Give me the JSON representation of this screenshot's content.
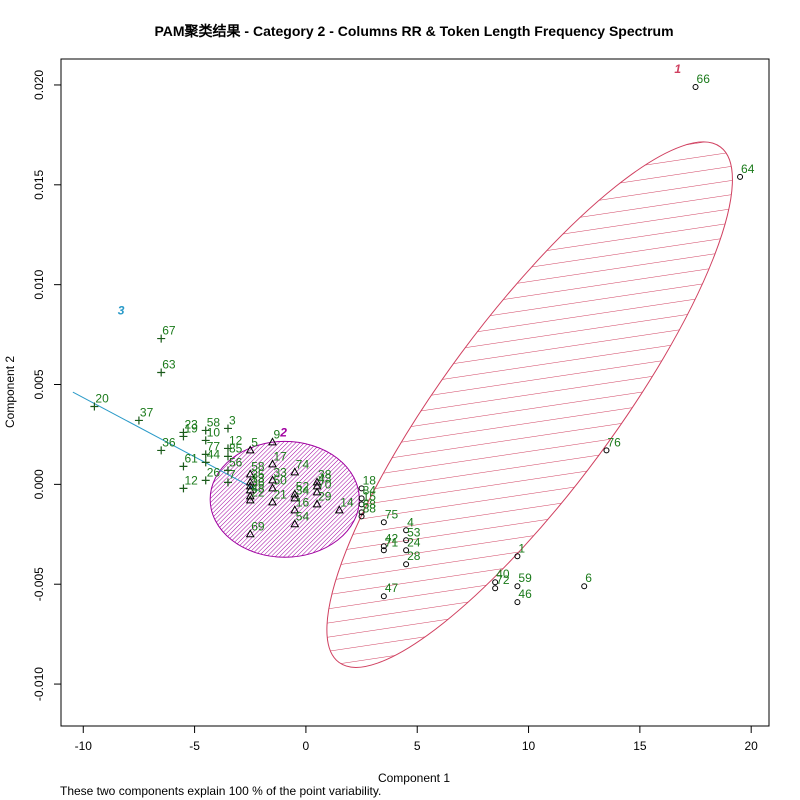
{
  "chart_data": {
    "type": "scatter",
    "title": "PAM聚类结果 - Category  2  - Columns  RR  &  Token Length Frequency Spectrum",
    "xlabel": "Component 1",
    "ylabel": "Component 2",
    "footer": "These two components explain 100 % of the point variability.",
    "xlim": [
      -11,
      20.8
    ],
    "ylim": [
      -0.0121,
      0.0213
    ],
    "xticks": [
      -10,
      -5,
      0,
      5,
      10,
      15,
      20
    ],
    "yticks": [
      -0.01,
      -0.005,
      0.0,
      0.005,
      0.01,
      0.015,
      0.02
    ],
    "ytick_labels": [
      "-0.010",
      "-0.005",
      "0.000",
      "0.005",
      "0.010",
      "0.015",
      "0.020"
    ],
    "colors": {
      "label": "#1a7a1a",
      "cluster1": "#d04060",
      "cluster2": "#a000a0",
      "cluster3": "#2a9ac8",
      "points": "#000000"
    },
    "clusters": [
      {
        "id": "1",
        "marker": "circle",
        "ellipse": {
          "cx": 10.05,
          "cy": 0.00399,
          "a": 14.4,
          "b": 3.85,
          "angle_deg": -53.5
        },
        "label_pos": {
          "x": 16.7,
          "y": 0.0206
        },
        "points": [
          {
            "label": "66",
            "x": 17.5,
            "y": 0.0199
          },
          {
            "label": "64",
            "x": 19.5,
            "y": 0.0154
          },
          {
            "label": "76",
            "x": 13.5,
            "y": 0.0017
          },
          {
            "label": "18",
            "x": 2.5,
            "y": -0.0002
          },
          {
            "label": "84",
            "x": 2.5,
            "y": -0.0007
          },
          {
            "label": "15",
            "x": 2.5,
            "y": -0.001
          },
          {
            "label": "68",
            "x": 2.5,
            "y": -0.0014
          },
          {
            "label": "88",
            "x": 2.5,
            "y": -0.0016
          },
          {
            "label": "75",
            "x": 3.5,
            "y": -0.0019
          },
          {
            "label": "4",
            "x": 4.5,
            "y": -0.0023
          },
          {
            "label": "53",
            "x": 4.5,
            "y": -0.0028
          },
          {
            "label": "42",
            "x": 3.5,
            "y": -0.0031
          },
          {
            "label": "71",
            "x": 3.5,
            "y": -0.0033
          },
          {
            "label": "24",
            "x": 4.5,
            "y": -0.0033
          },
          {
            "label": "28",
            "x": 4.5,
            "y": -0.004
          },
          {
            "label": "1",
            "x": 9.5,
            "y": -0.0036
          },
          {
            "label": "40",
            "x": 8.5,
            "y": -0.0049
          },
          {
            "label": "72",
            "x": 8.5,
            "y": -0.0052
          },
          {
            "label": "59",
            "x": 9.5,
            "y": -0.0051
          },
          {
            "label": "46",
            "x": 9.5,
            "y": -0.0059
          },
          {
            "label": "6",
            "x": 12.5,
            "y": -0.0051
          },
          {
            "label": "47",
            "x": 3.5,
            "y": -0.0056
          }
        ]
      },
      {
        "id": "2",
        "marker": "triangle",
        "ellipse": {
          "cx": -0.95,
          "cy": -0.00075,
          "a": 3.35,
          "b": 0.0029,
          "angle_deg": 0
        },
        "label_pos": {
          "x": -1.0,
          "y": 0.0024
        },
        "points": [
          {
            "label": "9",
            "x": -1.5,
            "y": 0.0021
          },
          {
            "label": "5",
            "x": -2.5,
            "y": 0.0017
          },
          {
            "label": "17",
            "x": -1.5,
            "y": 0.001
          },
          {
            "label": "74",
            "x": -0.5,
            "y": 0.0006
          },
          {
            "label": "58",
            "x": -2.5,
            "y": 0.0005
          },
          {
            "label": "33",
            "x": -1.5,
            "y": 0.0002
          },
          {
            "label": "35",
            "x": -2.5,
            "y": 0.0001
          },
          {
            "label": "13",
            "x": -2.5,
            "y": -0.0001
          },
          {
            "label": "38",
            "x": 0.5,
            "y": 0.0001
          },
          {
            "label": "43",
            "x": 0.5,
            "y": -0.0001
          },
          {
            "label": "50",
            "x": -1.5,
            "y": -0.0002
          },
          {
            "label": "36",
            "x": -2.5,
            "y": -0.0003
          },
          {
            "label": "48",
            "x": -2.5,
            "y": -0.0006
          },
          {
            "label": "52",
            "x": -0.5,
            "y": -0.0005
          },
          {
            "label": "34",
            "x": -0.5,
            "y": -0.0007
          },
          {
            "label": "22",
            "x": -2.5,
            "y": -0.0008
          },
          {
            "label": "70",
            "x": 0.5,
            "y": -0.0004
          },
          {
            "label": "21",
            "x": -1.5,
            "y": -0.0009
          },
          {
            "label": "29",
            "x": 0.5,
            "y": -0.001
          },
          {
            "label": "16",
            "x": -0.5,
            "y": -0.0013
          },
          {
            "label": "14",
            "x": 1.5,
            "y": -0.0013
          },
          {
            "label": "54",
            "x": -0.5,
            "y": -0.002
          },
          {
            "label": "69",
            "x": -2.5,
            "y": -0.0025
          }
        ]
      },
      {
        "id": "3",
        "marker": "plus",
        "ellipse": {
          "cx": -6.3,
          "cy": 0.00215,
          "a": 4.7,
          "b": 0.0016,
          "angle_deg": 28
        },
        "label_pos": {
          "x": -8.3,
          "y": 0.0085
        },
        "points": [
          {
            "label": "67",
            "x": -6.5,
            "y": 0.0073
          },
          {
            "label": "63",
            "x": -6.5,
            "y": 0.0056
          },
          {
            "label": "20",
            "x": -9.5,
            "y": 0.0039
          },
          {
            "label": "37",
            "x": -7.5,
            "y": 0.0032
          },
          {
            "label": "3",
            "x": -3.5,
            "y": 0.0028
          },
          {
            "label": "23",
            "x": -5.5,
            "y": 0.0026
          },
          {
            "label": "19",
            "x": -5.5,
            "y": 0.0024
          },
          {
            "label": "58",
            "x": -4.5,
            "y": 0.0027
          },
          {
            "label": "10",
            "x": -4.5,
            "y": 0.0022
          },
          {
            "label": "36",
            "x": -6.5,
            "y": 0.0017
          },
          {
            "label": "12",
            "x": -3.5,
            "y": 0.0018
          },
          {
            "label": "77",
            "x": -4.5,
            "y": 0.0015
          },
          {
            "label": "85",
            "x": -3.5,
            "y": 0.0014
          },
          {
            "label": "61",
            "x": -5.5,
            "y": 0.0009
          },
          {
            "label": "44",
            "x": -4.5,
            "y": 0.0011
          },
          {
            "label": "56",
            "x": -3.5,
            "y": 0.0007
          },
          {
            "label": "26",
            "x": -4.5,
            "y": 0.0002
          },
          {
            "label": "12",
            "x": -5.5,
            "y": -0.0002
          },
          {
            "label": "7",
            "x": -3.5,
            "y": 0.0001
          }
        ]
      }
    ]
  }
}
